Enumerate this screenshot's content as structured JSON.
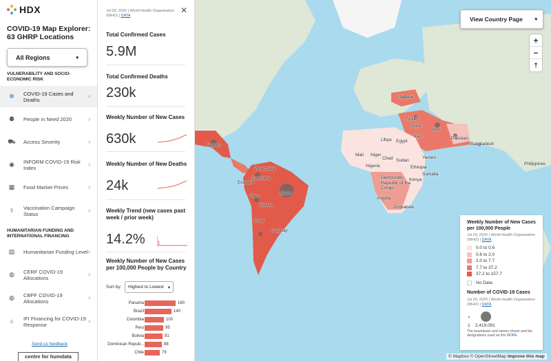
{
  "nav": {
    "logo_text": "HDX",
    "app_title": "COVID-19 Map Explorer: 63 GHRP Locations",
    "region_select": "All Regions",
    "sections": [
      "VULNERABILITY AND SOCIO-ECONOMIC RISK",
      "HUMANITARIAN FUNDING AND INTERNATIONAL FINANCING"
    ],
    "items": [
      {
        "label": "COVID-19 Cases and Deaths",
        "icon": "virus-icon",
        "glyph": "✲",
        "active": true
      },
      {
        "label": "People in Need 2020",
        "icon": "people-icon",
        "glyph": "⚉"
      },
      {
        "label": "Access Severity",
        "icon": "truck-icon",
        "glyph": "⛟"
      },
      {
        "label": "INFORM COVID-19 Risk Index",
        "icon": "risk-index-icon",
        "glyph": "◉"
      },
      {
        "label": "Food Market Prices",
        "icon": "cart-icon",
        "glyph": "▦"
      },
      {
        "label": "Vaccination Campaign Status",
        "icon": "syringe-icon",
        "glyph": "⚕"
      },
      {
        "label": "Humanitarian Funding Level",
        "icon": "money-icon",
        "glyph": "▤"
      },
      {
        "label": "CERF COVID-19 Allocations",
        "icon": "money-bag-icon",
        "glyph": "◍"
      },
      {
        "label": "CBPF COVID-19 Allocations",
        "icon": "money-bag-icon",
        "glyph": "◍"
      },
      {
        "label": "IFI Financing for COVID-19 Response",
        "icon": "bank-icon",
        "glyph": "⌂"
      }
    ],
    "feedback": "Send us feedback",
    "partner_logo": "centre for humdata"
  },
  "panel": {
    "source_date": "Jul 29, 2020 | World Health Organisation (WHO) |",
    "source_link": "DATA",
    "stats": [
      {
        "title": "Total Confirmed Cases",
        "value": "5.9M"
      },
      {
        "title": "Total Confirmed Deaths",
        "value": "230k"
      },
      {
        "title": "Weekly Number of New Cases",
        "value": "630k"
      },
      {
        "title": "Weekly Number of New Deaths",
        "value": "24k"
      },
      {
        "title": "Weekly Trend (new cases past week / prior week)",
        "value": "14.2%"
      }
    ],
    "ranking_title": "Weekly Number of New Cases per 100,000 People by Country",
    "sort_label": "Sort by:",
    "sort_value": "Highest to Lowest"
  },
  "chart_data": {
    "type": "bar",
    "categories": [
      "Panama",
      "Brazil",
      "Colombia",
      "Peru",
      "Bolivia",
      "Dominican Repub...",
      "Chile"
    ],
    "values": [
      160,
      140,
      100,
      95,
      91,
      88,
      79
    ],
    "title": "Weekly Number of New Cases per 100,000 People by Country",
    "xlim": [
      0,
      160
    ]
  },
  "map": {
    "view_country": "View Country Page",
    "zoom_in": "+",
    "zoom_out": "−",
    "reset_north": "⇡",
    "labels": [
      "Ukraine",
      "Turkey",
      "Syria",
      "Iran",
      "Iraq",
      "Libya",
      "Egypt",
      "Pakistan",
      "Bangladesh",
      "Mali",
      "Niger",
      "Chad",
      "Sudan",
      "Yemen",
      "Nigeria",
      "Ethiopia",
      "Somalia",
      "Democratic Republic of the Congo",
      "Kenya",
      "Angola",
      "Zimbabwe",
      "Mexico",
      "Venezuela",
      "Colombia",
      "Ecuador",
      "Peru",
      "Brazil",
      "Bolivia",
      "Chile",
      "Uruguay",
      "Philippines"
    ],
    "attribution": [
      "© Mapbox",
      "© OpenStreetMap",
      "Improve this map"
    ]
  },
  "legend": {
    "title": "Weekly Number of New Cases per 100,000 People",
    "source": "Jul 29, 2020 | World Health Organisation (WHO) |",
    "source_link": "DATA",
    "classes": [
      {
        "label": "0.0 to 0.6",
        "color": "#fbe3e0"
      },
      {
        "label": "0.6 to 2.0",
        "color": "#f5c2bc"
      },
      {
        "label": "2.0 to 7.7",
        "color": "#ef9c92"
      },
      {
        "label": "7.7 to 37.2",
        "color": "#ea7868"
      },
      {
        "label": "37.2 to 157.7",
        "color": "#e25a49"
      }
    ],
    "no_data": "No Data",
    "circles_title": "Number of COVID-19 Cases",
    "circle_min": "1",
    "circle_max": "2,419,091",
    "note": "The boundaries and names shown and the designations used on this",
    "note_link": "MORE"
  }
}
